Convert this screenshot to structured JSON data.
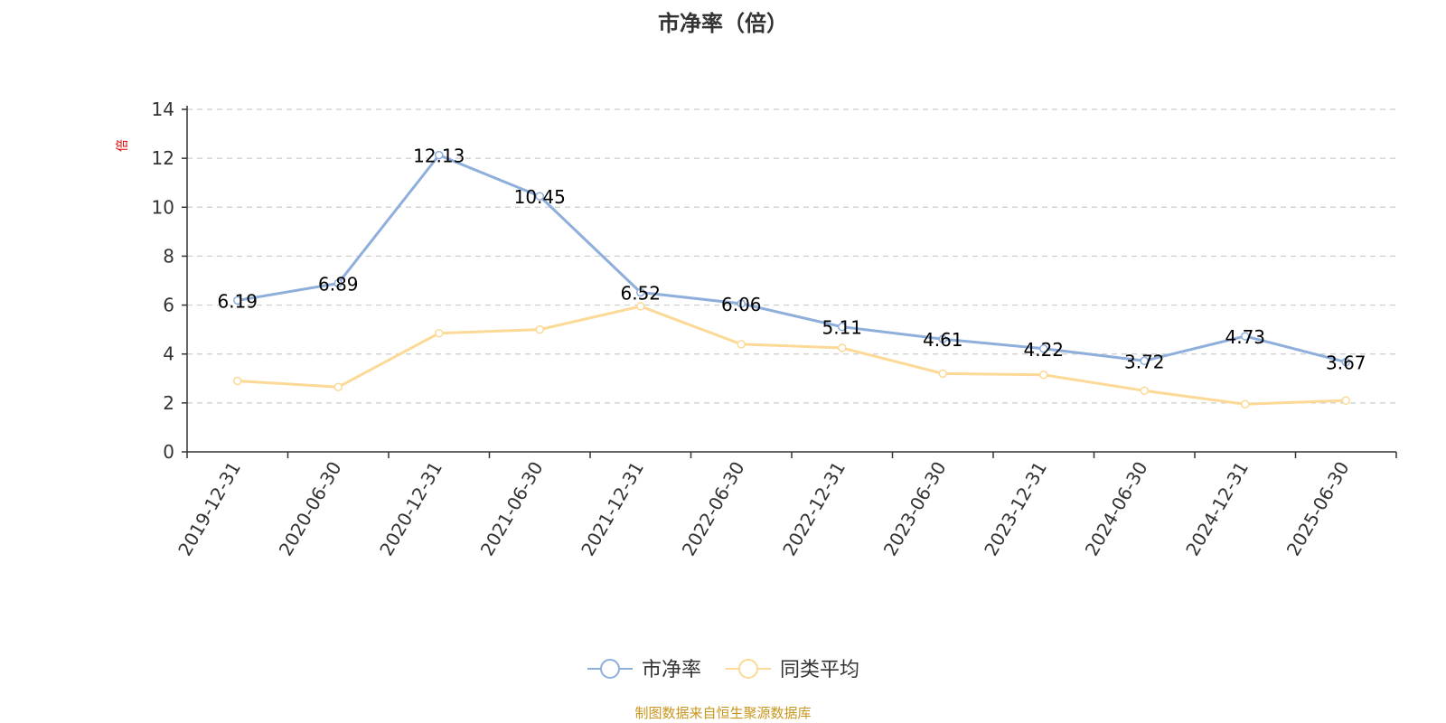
{
  "chart_data": {
    "type": "line",
    "title": "市净率（倍）",
    "ylabel": "倍",
    "xlabel": "",
    "ylim": [
      0,
      14
    ],
    "yticks": [
      0,
      2,
      4,
      6,
      8,
      10,
      12,
      14
    ],
    "grid": true,
    "legend_position": "bottom",
    "categories": [
      "2019-12-31",
      "2020-06-30",
      "2020-12-31",
      "2021-06-30",
      "2021-12-31",
      "2022-06-30",
      "2022-12-31",
      "2023-06-30",
      "2023-12-31",
      "2024-06-30",
      "2024-12-31",
      "2025-06-30"
    ],
    "series": [
      {
        "name": "市净率",
        "color": "#8eaedb",
        "values": [
          6.19,
          6.89,
          12.13,
          10.45,
          6.52,
          6.06,
          5.11,
          4.61,
          4.22,
          3.72,
          4.73,
          3.67
        ],
        "labels": [
          "6.19",
          "6.89",
          "12.13",
          "10.45",
          "6.52",
          "6.06",
          "5.11",
          "4.61",
          "4.22",
          "3.72",
          "4.73",
          "3.67"
        ]
      },
      {
        "name": "同类平均",
        "color": "#fcd996",
        "values": [
          2.9,
          2.65,
          4.85,
          5.0,
          5.95,
          4.4,
          4.25,
          3.2,
          3.15,
          2.5,
          1.95,
          2.1
        ]
      }
    ]
  },
  "source": "制图数据来自恒生聚源数据库"
}
